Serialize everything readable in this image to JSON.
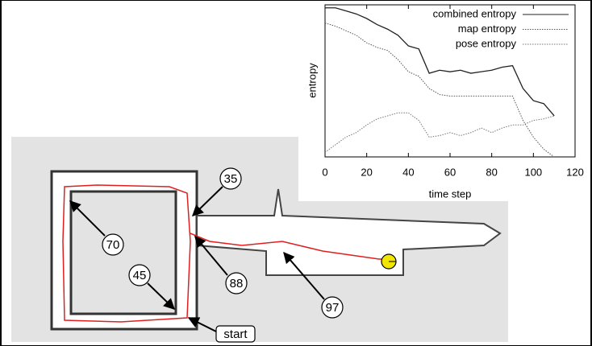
{
  "chart_data": {
    "type": "line",
    "x_label": "time step",
    "y_label": "entropy",
    "x": [
      0,
      5,
      10,
      15,
      20,
      25,
      30,
      35,
      40,
      45,
      50,
      55,
      60,
      65,
      70,
      75,
      80,
      85,
      90,
      95,
      100,
      105,
      110
    ],
    "series": [
      {
        "name": "combined entropy",
        "color": "#222222",
        "style": "solid",
        "values": [
          98,
          98,
          96,
          94,
          91,
          87,
          84,
          80,
          73,
          71,
          55,
          57,
          56,
          57,
          55,
          56,
          57,
          59,
          60,
          45,
          37,
          35,
          27
        ]
      },
      {
        "name": "map entropy",
        "color": "#555555",
        "style": "dotted",
        "values": [
          88,
          86,
          83,
          80,
          75,
          72,
          70,
          64,
          56,
          53,
          45,
          41,
          40,
          40,
          40,
          40,
          40,
          40,
          40,
          24,
          13,
          5,
          0
        ]
      },
      {
        "name": "pose entropy",
        "color": "#777777",
        "style": "dotted",
        "values": [
          3,
          8,
          13,
          16,
          21,
          25,
          27,
          29,
          29,
          24,
          13,
          14,
          16,
          14,
          16,
          19,
          16,
          19,
          21,
          21,
          24,
          25,
          27
        ]
      }
    ],
    "xlim": [
      0,
      120
    ],
    "xticks": [
      0,
      20,
      40,
      60,
      80,
      100,
      120
    ],
    "ylim": [
      0,
      100
    ],
    "grid": false,
    "legend": "top-right"
  },
  "map": {
    "labels": [
      "35",
      "70",
      "45",
      "88",
      "97",
      "start"
    ]
  }
}
